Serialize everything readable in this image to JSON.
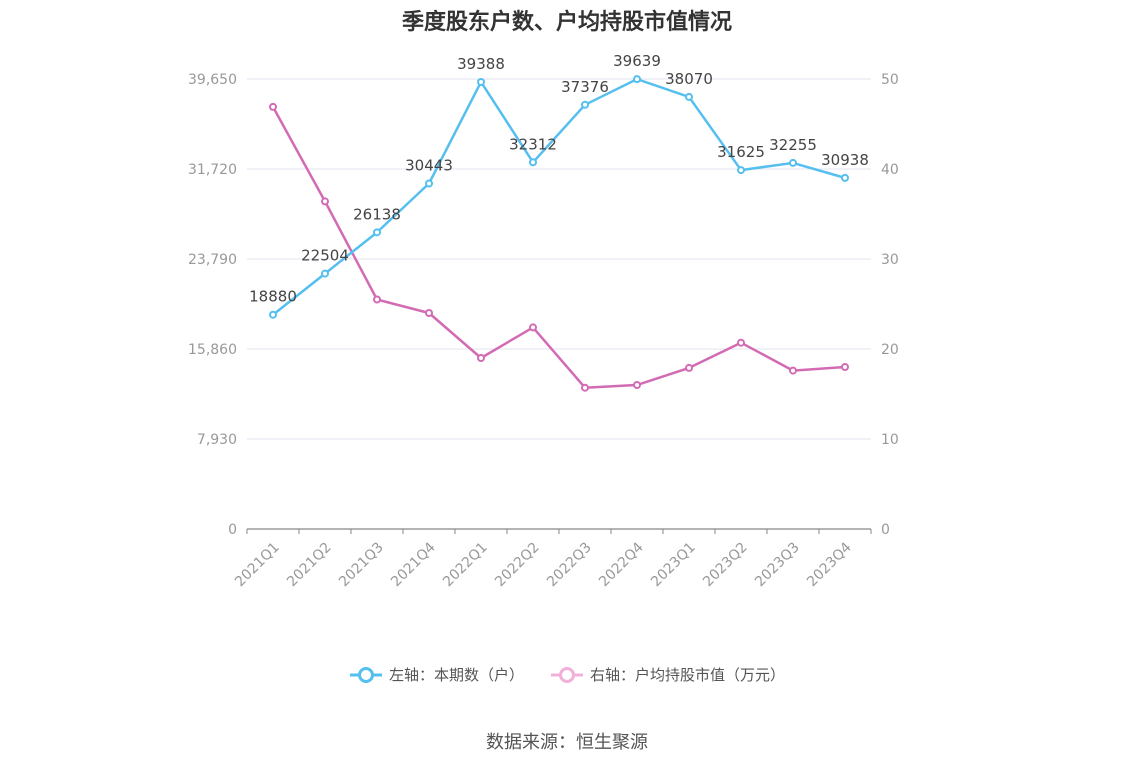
{
  "title": "季度股东户数、户均持股市值情况",
  "source": "数据来源：恒生聚源",
  "legend": {
    "left": "左轴：本期数（户）",
    "right": "右轴：户均持股市值（万元）"
  },
  "colors": {
    "left_series": "#55bff0",
    "right_series": "#d36bb4",
    "right_legend": "#f0b0d8",
    "grid": "#e3e5f0",
    "axis": "#888888",
    "tick_text": "#999999",
    "label_text": "#444444"
  },
  "chart_data": {
    "type": "line",
    "categories": [
      "2021Q1",
      "2021Q2",
      "2021Q3",
      "2021Q4",
      "2022Q1",
      "2022Q2",
      "2022Q3",
      "2022Q4",
      "2023Q1",
      "2023Q2",
      "2023Q3",
      "2023Q4"
    ],
    "series": [
      {
        "name": "左轴：本期数（户）",
        "axis": "left",
        "values": [
          18880,
          22504,
          26138,
          30443,
          39388,
          32312,
          37376,
          39639,
          38070,
          31625,
          32255,
          30938
        ],
        "data_labels": [
          "18880",
          "22504",
          "26138",
          "30443",
          "39388",
          "32312",
          "37376",
          "39639",
          "38070",
          "31625",
          "32255",
          "30938"
        ]
      },
      {
        "name": "右轴：户均持股市值（万元）",
        "axis": "right",
        "values": [
          46.9,
          36.4,
          25.5,
          24.0,
          19.0,
          22.4,
          15.7,
          16.0,
          17.9,
          20.7,
          17.6,
          18.0
        ]
      }
    ],
    "y_left": {
      "ylim": [
        0,
        39650
      ],
      "ticks": [
        0,
        7930,
        15860,
        23790,
        31720,
        39650
      ],
      "tick_labels": [
        "0",
        "7,930",
        "15,860",
        "23,790",
        "31,720",
        "39,650"
      ]
    },
    "y_right": {
      "ylim": [
        0,
        50
      ],
      "ticks": [
        0,
        10,
        20,
        30,
        40,
        50
      ],
      "tick_labels": [
        "0",
        "10",
        "20",
        "30",
        "40",
        "50"
      ]
    },
    "grid": true,
    "legend_position": "bottom"
  }
}
